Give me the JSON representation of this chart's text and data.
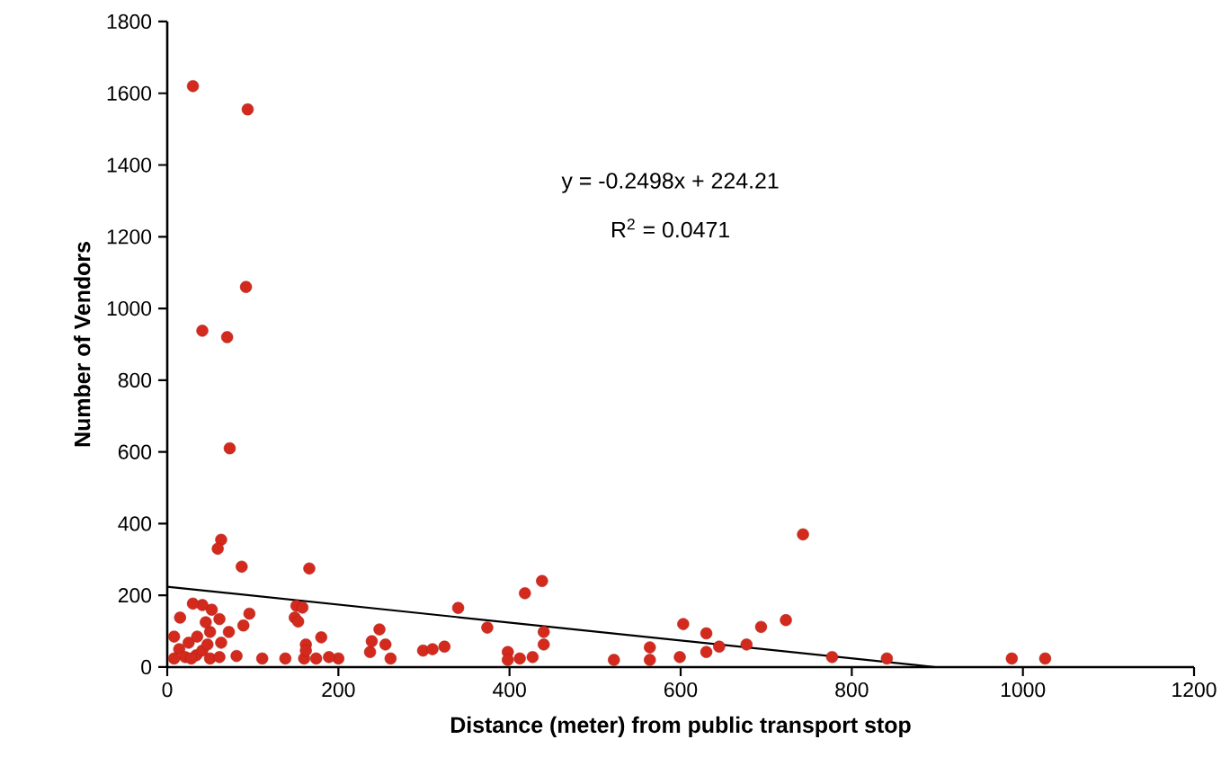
{
  "chart_data": {
    "type": "scatter",
    "xlabel": "Distance (meter) from public transport stop",
    "ylabel": "Number of Vendors",
    "annotations": [
      "y = -0.2498x + 224.21",
      "R$^{2}$ = 0.0471"
    ],
    "xlim": [
      0,
      1200
    ],
    "xticks": [
      0,
      200,
      400,
      600,
      800,
      1000,
      1200
    ],
    "ylim": [
      0,
      1800
    ],
    "yticks": [
      0,
      200,
      400,
      600,
      800,
      1000,
      1200,
      1400,
      1600,
      1800
    ],
    "grid": false,
    "marker": "circle",
    "series": [
      {
        "color": "#d42a1e",
        "x": [
          30,
          94,
          92,
          41,
          70,
          73,
          63,
          59,
          87,
          166,
          340,
          374,
          418,
          438,
          743,
          603,
          630,
          645,
          677,
          694,
          723,
          777,
          841,
          987,
          1026,
          522,
          564,
          564,
          599,
          630,
          440,
          440,
          398,
          398,
          412,
          427,
          299,
          310,
          324,
          237,
          239,
          248,
          255,
          261,
          200,
          189,
          180,
          174,
          162,
          160,
          162,
          151,
          158,
          149,
          153,
          138,
          111,
          81,
          96,
          89,
          72,
          63,
          50,
          52,
          41,
          30,
          15,
          8,
          14,
          25,
          21,
          34,
          41,
          50,
          61,
          47,
          35,
          28,
          8,
          61,
          45
        ],
        "values": [
          1620,
          1555,
          1060,
          938,
          920,
          610,
          355,
          330,
          280,
          275,
          165,
          110,
          206,
          240,
          370,
          120,
          94,
          57,
          63,
          112,
          131,
          28,
          24,
          24,
          24,
          20,
          55,
          20,
          28,
          42,
          63,
          98,
          42,
          20,
          24,
          28,
          46,
          50,
          57,
          42,
          72,
          105,
          63,
          24,
          24,
          28,
          83,
          24,
          63,
          24,
          46,
          171,
          166,
          138,
          127,
          24,
          24,
          31,
          149,
          116,
          98,
          68,
          98,
          160,
          173,
          177,
          138,
          85,
          50,
          68,
          28,
          33,
          46,
          24,
          28,
          63,
          85,
          24,
          24,
          134,
          125
        ]
      },
      {
        "type": "line",
        "color": "#000000",
        "marker": "none",
        "x": [
          0,
          898
        ],
        "values": [
          224,
          0
        ]
      }
    ]
  }
}
